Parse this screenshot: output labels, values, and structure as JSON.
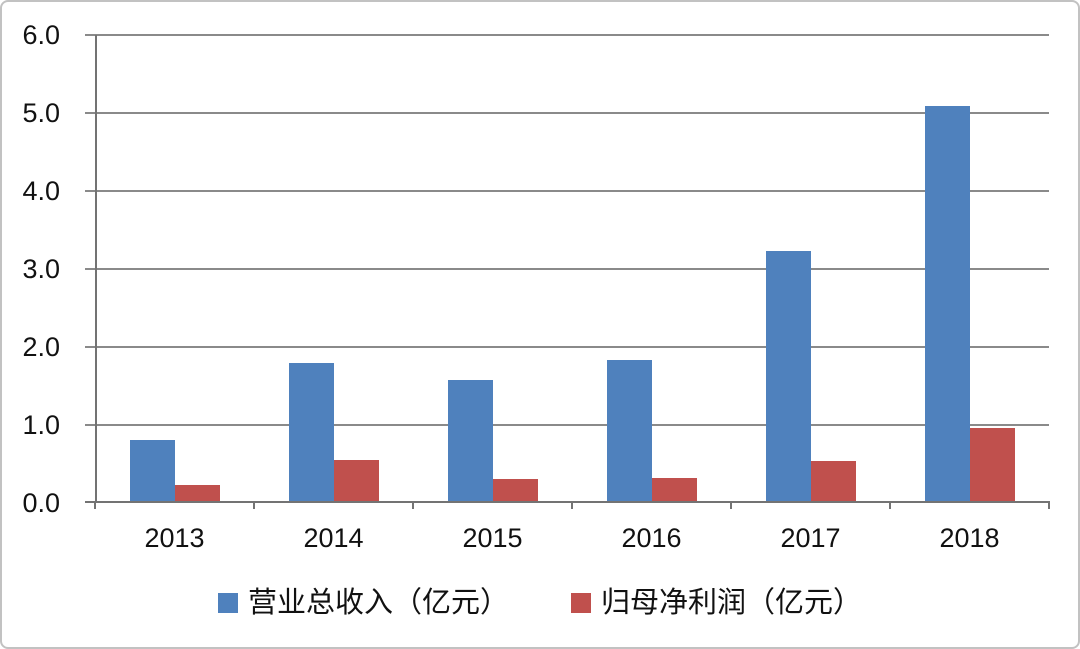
{
  "chart_data": {
    "type": "bar",
    "title": "",
    "xlabel": "",
    "ylabel": "",
    "categories": [
      "2013",
      "2014",
      "2015",
      "2016",
      "2017",
      "2018"
    ],
    "series": [
      {
        "name": "营业总收入（亿元）",
        "color": "#4F81BD",
        "values": [
          0.78,
          1.77,
          1.55,
          1.81,
          3.2,
          5.07
        ]
      },
      {
        "name": "归母净利润（亿元）",
        "color": "#C0504D",
        "values": [
          0.21,
          0.52,
          0.28,
          0.3,
          0.51,
          0.94
        ]
      }
    ],
    "ylim": [
      0,
      6
    ],
    "ytick_step": 1.0,
    "ytick_labels": [
      "0.0",
      "1.0",
      "2.0",
      "3.0",
      "4.0",
      "5.0",
      "6.0"
    ],
    "grid": true,
    "legend_position": "bottom"
  },
  "style": {
    "plot_background": "#ffffff",
    "gridline_color": "#8a8a8a",
    "axis_color": "#737373",
    "text_color": "#111111",
    "frame_border_color": "#c2c2c2"
  }
}
